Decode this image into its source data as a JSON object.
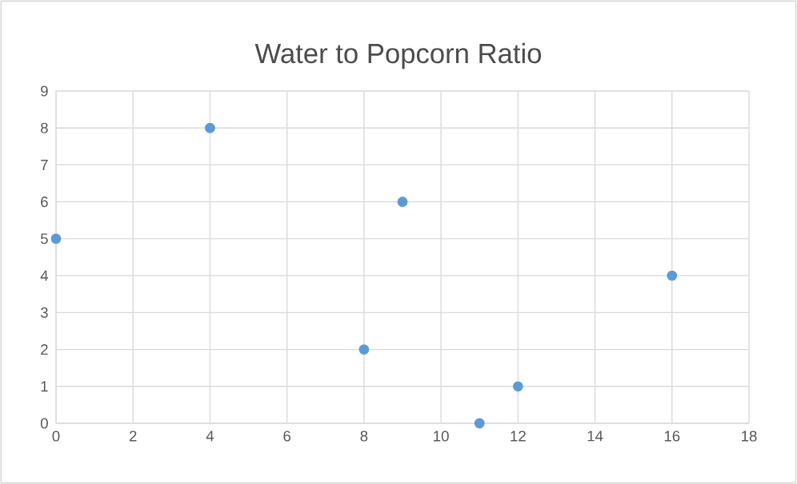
{
  "chart_data": {
    "type": "scatter",
    "title": "Water to Popcorn Ratio",
    "x": [
      0,
      4,
      8,
      9,
      11,
      12,
      16
    ],
    "values": [
      5,
      8,
      2,
      6,
      0,
      1,
      4
    ],
    "color": "#5b9bd5",
    "marker": "circle",
    "grid": true,
    "xlim": [
      0,
      18
    ],
    "xticks": [
      0,
      2,
      4,
      6,
      8,
      10,
      12,
      14,
      16,
      18
    ],
    "ylim": [
      0,
      9
    ],
    "yticks": [
      0,
      1,
      2,
      3,
      4,
      5,
      6,
      7,
      8,
      9
    ]
  }
}
